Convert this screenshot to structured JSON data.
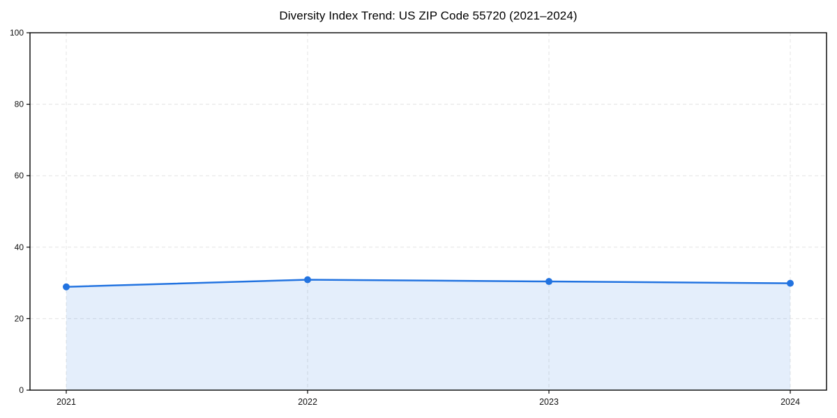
{
  "chart_data": {
    "type": "area",
    "title": "Diversity Index Trend: US ZIP Code 55720 (2021–2024)",
    "xlabel": "",
    "ylabel": "",
    "categories": [
      "2021",
      "2022",
      "2023",
      "2024"
    ],
    "values": [
      28.9,
      30.9,
      30.4,
      29.9
    ],
    "ylim": [
      0,
      100
    ],
    "yticks": [
      0,
      20,
      40,
      60,
      80,
      100
    ],
    "grid": "dashed-both-axes",
    "legend": "none",
    "marker": "circle",
    "colors": {
      "line": "#2273e0",
      "fill": "rgba(34, 115, 224, 0.12)",
      "grid": "#e3e3e3",
      "spine": "#000000",
      "tick_text": "#111111",
      "plot_background": "#ffffff"
    }
  }
}
